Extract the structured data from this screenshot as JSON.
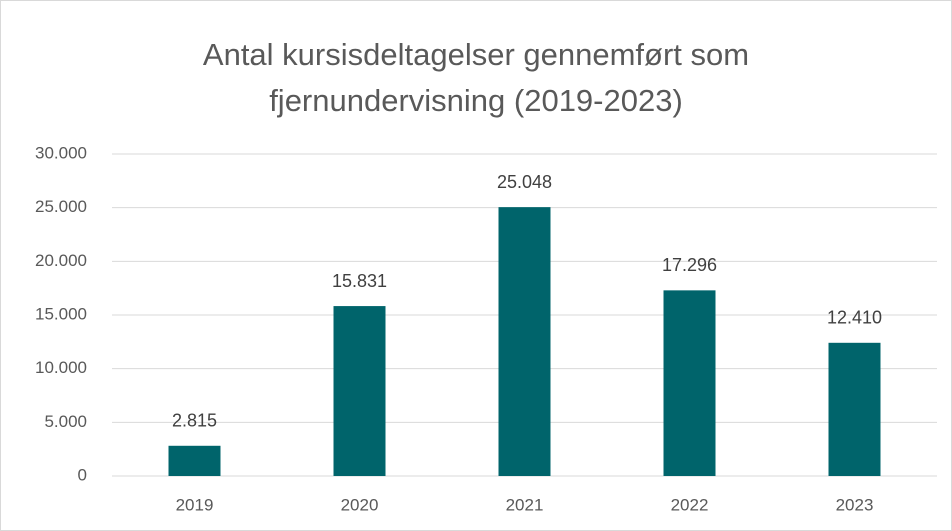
{
  "chart_data": {
    "type": "bar",
    "title": [
      "Antal kursisdeltagelser gennemført som",
      "fjernundervisning (2019-2023)"
    ],
    "categories": [
      "2019",
      "2020",
      "2021",
      "2022",
      "2023"
    ],
    "values": [
      2815,
      15831,
      25048,
      17296,
      12410
    ],
    "value_labels": [
      "2.815",
      "15.831",
      "25.048",
      "17.296",
      "12.410"
    ],
    "color": "#00646b",
    "ylim": [
      0,
      30000
    ],
    "yticks": [
      0,
      {
        "value": 5000,
        "label": "5.000"
      },
      {
        "value": 10000,
        "label": "10.000"
      },
      {
        "value": 15000,
        "label": "15.000"
      },
      {
        "value": 20000,
        "label": "20.000"
      },
      {
        "value": 25000,
        "label": "25.000"
      },
      {
        "value": 30000,
        "label": "30.000"
      }
    ],
    "grid": true
  }
}
